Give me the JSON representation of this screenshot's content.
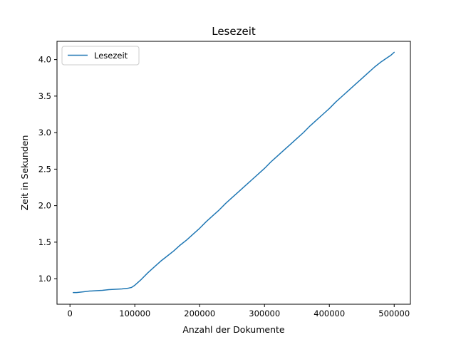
{
  "chart_data": {
    "type": "line",
    "title": "Lesezeit",
    "xlabel": "Anzahl der Dokumente",
    "ylabel": "Zeit in Sekunden",
    "xlim": [
      -20000,
      525000
    ],
    "ylim": [
      0.65,
      4.25
    ],
    "xticks": [
      0,
      100000,
      200000,
      300000,
      400000,
      500000
    ],
    "xtick_labels": [
      "0",
      "100000",
      "200000",
      "300000",
      "400000",
      "500000"
    ],
    "yticks": [
      1.0,
      1.5,
      2.0,
      2.5,
      3.0,
      3.5,
      4.0
    ],
    "ytick_labels": [
      "1.0",
      "1.5",
      "2.0",
      "2.5",
      "3.0",
      "3.5",
      "4.0"
    ],
    "grid": false,
    "legend_position": "top-left",
    "series": [
      {
        "name": "Lesezeit",
        "color": "#1f77b4",
        "x": [
          5000,
          10000,
          20000,
          30000,
          40000,
          50000,
          60000,
          70000,
          80000,
          90000,
          95000,
          100000,
          110000,
          120000,
          130000,
          140000,
          150000,
          160000,
          170000,
          180000,
          190000,
          200000,
          210000,
          220000,
          230000,
          240000,
          250000,
          260000,
          270000,
          280000,
          290000,
          300000,
          310000,
          320000,
          330000,
          340000,
          350000,
          360000,
          370000,
          380000,
          390000,
          400000,
          410000,
          420000,
          430000,
          440000,
          450000,
          460000,
          470000,
          480000,
          490000,
          495000,
          500000
        ],
        "values": [
          0.81,
          0.81,
          0.82,
          0.83,
          0.835,
          0.84,
          0.85,
          0.855,
          0.86,
          0.87,
          0.88,
          0.91,
          0.99,
          1.08,
          1.16,
          1.24,
          1.31,
          1.38,
          1.46,
          1.53,
          1.61,
          1.69,
          1.78,
          1.86,
          1.94,
          2.03,
          2.11,
          2.19,
          2.27,
          2.35,
          2.43,
          2.51,
          2.6,
          2.68,
          2.76,
          2.84,
          2.92,
          3.0,
          3.09,
          3.17,
          3.25,
          3.33,
          3.42,
          3.5,
          3.58,
          3.66,
          3.74,
          3.82,
          3.9,
          3.97,
          4.03,
          4.06,
          4.1
        ]
      }
    ]
  }
}
